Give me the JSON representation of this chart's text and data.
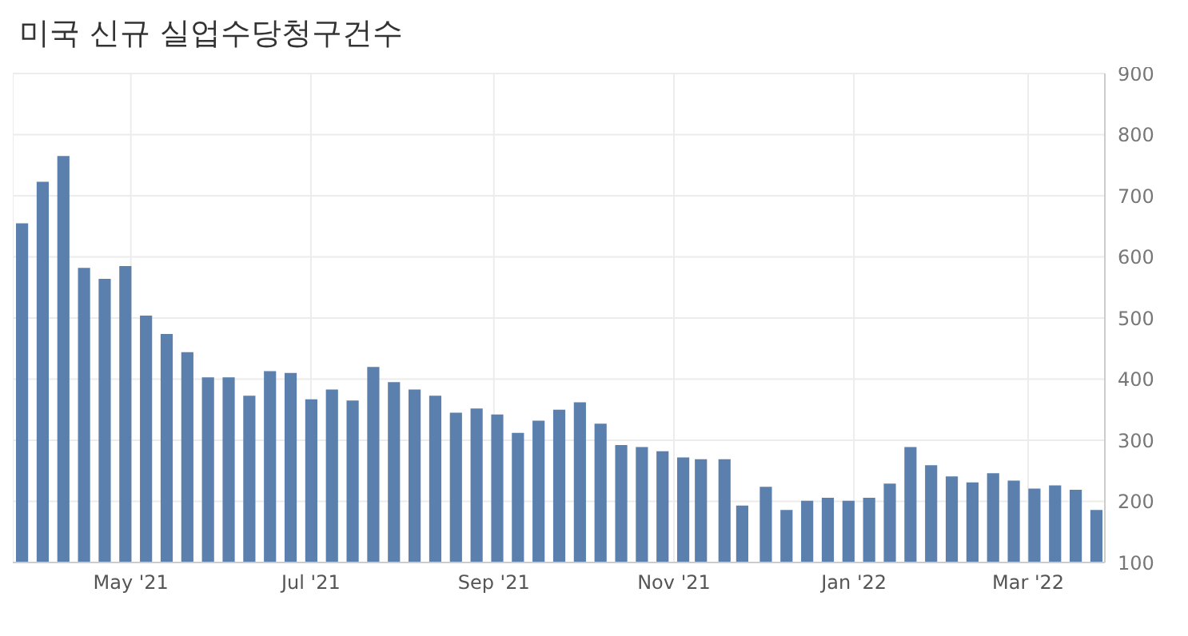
{
  "chart_data": {
    "type": "bar",
    "title": "미국 신규 실업수당청구건수",
    "x": [
      "2021-03-25",
      "2021-04-01",
      "2021-04-08",
      "2021-04-15",
      "2021-04-22",
      "2021-04-29",
      "2021-05-06",
      "2021-05-13",
      "2021-05-20",
      "2021-05-27",
      "2021-06-03",
      "2021-06-10",
      "2021-06-17",
      "2021-06-24",
      "2021-07-01",
      "2021-07-08",
      "2021-07-15",
      "2021-07-22",
      "2021-07-29",
      "2021-08-05",
      "2021-08-12",
      "2021-08-19",
      "2021-08-26",
      "2021-09-02",
      "2021-09-09",
      "2021-09-16",
      "2021-09-23",
      "2021-09-30",
      "2021-10-07",
      "2021-10-14",
      "2021-10-21",
      "2021-10-28",
      "2021-11-04",
      "2021-11-10",
      "2021-11-18",
      "2021-11-24",
      "2021-12-02",
      "2021-12-09",
      "2021-12-16",
      "2021-12-23",
      "2021-12-30",
      "2022-01-06",
      "2022-01-13",
      "2022-01-20",
      "2022-01-27",
      "2022-02-03",
      "2022-02-10",
      "2022-02-17",
      "2022-02-24",
      "2022-03-03",
      "2022-03-10",
      "2022-03-17",
      "2022-03-24"
    ],
    "values": [
      655,
      723,
      765,
      582,
      564,
      585,
      504,
      474,
      444,
      403,
      403,
      373,
      413,
      410,
      367,
      383,
      365,
      420,
      395,
      383,
      373,
      345,
      352,
      342,
      312,
      332,
      350,
      362,
      327,
      292,
      289,
      282,
      272,
      269,
      269,
      193,
      224,
      186,
      201,
      206,
      201,
      206,
      229,
      289,
      259,
      241,
      231,
      246,
      234,
      221,
      226,
      219,
      186
    ],
    "color": "#5b80ae",
    "xlim": [
      "2021-03-22",
      "2022-03-27"
    ],
    "xticks": [
      {
        "value": "2021-05-01",
        "label": "May '21"
      },
      {
        "value": "2021-07-01",
        "label": "Jul '21"
      },
      {
        "value": "2021-09-01",
        "label": "Sep '21"
      },
      {
        "value": "2021-11-01",
        "label": "Nov '21"
      },
      {
        "value": "2022-01-01",
        "label": "Jan '22"
      },
      {
        "value": "2022-03-01",
        "label": "Mar '22"
      }
    ],
    "ylim": [
      100,
      900
    ],
    "yticks": [
      100,
      200,
      300,
      400,
      500,
      600,
      700,
      800,
      900
    ],
    "grid": true,
    "legend": false
  }
}
